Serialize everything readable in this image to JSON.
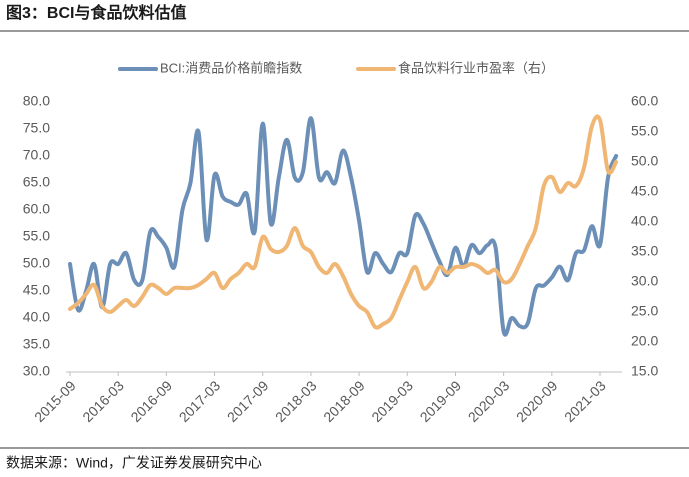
{
  "chart_data": {
    "type": "line",
    "title": "图3：BCI与食品饮料估值",
    "source": "数据来源：Wind，广发证券发展研究中心",
    "categories": [
      "2015-09",
      null,
      null,
      null,
      null,
      null,
      "2016-03",
      null,
      null,
      null,
      null,
      null,
      "2016-09",
      null,
      null,
      null,
      null,
      null,
      "2017-03",
      null,
      null,
      null,
      null,
      null,
      "2017-09",
      null,
      null,
      null,
      null,
      null,
      "2018-03",
      null,
      null,
      null,
      null,
      null,
      "2018-09",
      null,
      null,
      null,
      null,
      null,
      "2019-03",
      null,
      null,
      null,
      null,
      null,
      "2019-09",
      null,
      null,
      null,
      null,
      null,
      "2020-03",
      null,
      null,
      null,
      null,
      null,
      "2020-09",
      null,
      null,
      null,
      null,
      null,
      "2021-03",
      null,
      null
    ],
    "series": [
      {
        "name": "BCI:消费品价格前瞻指数",
        "color": "#6b8fb7",
        "axis": "y",
        "values": [
          50,
          41.5,
          45,
          50,
          42,
          50,
          50,
          52,
          47,
          47,
          56,
          55,
          53,
          49.5,
          60,
          65,
          74.5,
          54.5,
          66.5,
          62.5,
          61.5,
          61,
          63,
          56,
          76,
          57.5,
          66,
          73,
          66,
          67,
          77,
          66,
          67,
          65,
          71,
          66,
          58,
          48.5,
          52,
          50,
          48.5,
          52,
          52,
          59,
          57.5,
          54,
          50.5,
          48,
          53,
          49.5,
          53.5,
          52,
          53.5,
          53,
          37.5,
          40,
          38.5,
          39,
          45.5,
          46,
          47.5,
          49.5,
          47,
          52,
          52.5,
          57,
          53.5,
          66,
          70
        ]
      },
      {
        "name": "食品饮料行业市盈率（右）",
        "color": "#f0b674",
        "axis": "y2",
        "values": [
          25.5,
          26.5,
          28,
          29.5,
          26,
          25,
          26,
          27,
          26,
          27.5,
          29.5,
          29,
          28,
          29,
          29,
          29,
          29.5,
          30.5,
          31.5,
          29,
          30.5,
          31.5,
          33,
          32.5,
          37.5,
          35.5,
          35,
          36,
          39,
          36,
          35,
          32.5,
          31.5,
          33,
          31,
          28,
          26,
          25,
          22.5,
          23,
          24,
          27,
          30,
          32.5,
          29,
          30,
          32.5,
          31.5,
          32.5,
          32.5,
          33,
          32.5,
          31.5,
          32,
          30,
          30.5,
          33,
          36,
          39,
          46,
          47.5,
          45,
          46.5,
          46,
          49,
          56,
          57,
          48.5,
          50
        ]
      }
    ],
    "ylim": [
      30,
      80
    ],
    "yticks": [
      {
        "value": 30,
        "label": "30.0"
      },
      {
        "value": 35,
        "label": "35.0"
      },
      {
        "value": 40,
        "label": "40.0"
      },
      {
        "value": 45,
        "label": "45.0"
      },
      {
        "value": 50,
        "label": "50.0"
      },
      {
        "value": 55,
        "label": "55.0"
      },
      {
        "value": 60,
        "label": "60.0"
      },
      {
        "value": 65,
        "label": "65.0"
      },
      {
        "value": 70,
        "label": "70.0"
      },
      {
        "value": 75,
        "label": "75.0"
      },
      {
        "value": 80,
        "label": "80.0"
      }
    ],
    "y2lim": [
      15,
      60
    ],
    "y2ticks": [
      {
        "value": 15,
        "label": "15.0"
      },
      {
        "value": 20,
        "label": "20.0"
      },
      {
        "value": 25,
        "label": "25.0"
      },
      {
        "value": 30,
        "label": "30.0"
      },
      {
        "value": 35,
        "label": "35.0"
      },
      {
        "value": 40,
        "label": "40.0"
      },
      {
        "value": 45,
        "label": "45.0"
      },
      {
        "value": 50,
        "label": "50.0"
      },
      {
        "value": 55,
        "label": "55.0"
      },
      {
        "value": 60,
        "label": "60.0"
      }
    ],
    "grid": false,
    "legend": "top"
  }
}
